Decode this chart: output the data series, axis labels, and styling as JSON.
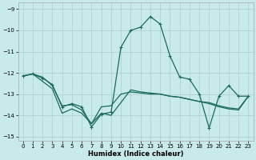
{
  "xlabel": "Humidex (Indice chaleur)",
  "background_color": "#c8eaea",
  "grid_color": "#aacccc",
  "line_color": "#1a6b5a",
  "xlim": [
    -0.5,
    23.5
  ],
  "ylim": [
    -15.2,
    -8.7
  ],
  "yticks": [
    -15,
    -14,
    -13,
    -12,
    -11,
    -10,
    -9
  ],
  "xticks": [
    0,
    1,
    2,
    3,
    4,
    5,
    6,
    7,
    8,
    9,
    10,
    11,
    12,
    13,
    14,
    15,
    16,
    17,
    18,
    19,
    20,
    21,
    22,
    23
  ],
  "series": [
    {
      "x": [
        0,
        1,
        2,
        3,
        4,
        5,
        6,
        7,
        8,
        9,
        10,
        11,
        12,
        13,
        14,
        15,
        16,
        17,
        18,
        19,
        20,
        21,
        22,
        23
      ],
      "y": [
        -12.15,
        -12.05,
        -12.4,
        -12.75,
        -13.9,
        -13.7,
        -13.9,
        -14.4,
        -13.9,
        -14.0,
        -13.4,
        -12.8,
        -12.9,
        -12.95,
        -13.0,
        -13.1,
        -13.15,
        -13.25,
        -13.35,
        -13.45,
        -13.6,
        -13.7,
        -13.75,
        -13.1
      ],
      "marker": false,
      "lw": 0.9
    },
    {
      "x": [
        0,
        1,
        2,
        3,
        4,
        5,
        6,
        7,
        8,
        9,
        10,
        11,
        12,
        13,
        14,
        15,
        16,
        17,
        18,
        19,
        20,
        21,
        22,
        23
      ],
      "y": [
        -12.15,
        -12.05,
        -12.2,
        -12.6,
        -13.55,
        -13.5,
        -13.75,
        -14.4,
        -13.6,
        -13.55,
        -13.0,
        -12.9,
        -12.95,
        -13.0,
        -13.0,
        -13.1,
        -13.15,
        -13.25,
        -13.35,
        -13.4,
        -13.55,
        -13.65,
        -13.7,
        -13.1
      ],
      "marker": false,
      "lw": 0.9
    },
    {
      "x": [
        0,
        1,
        2,
        3,
        4,
        5,
        6,
        7,
        8,
        9,
        10,
        11,
        12,
        13,
        14,
        15,
        16,
        17,
        18,
        19,
        20,
        21,
        22,
        23
      ],
      "y": [
        -12.15,
        -12.05,
        -12.25,
        -12.55,
        -13.6,
        -13.45,
        -13.6,
        -14.55,
        -13.95,
        -13.85,
        -10.8,
        -10.0,
        -9.85,
        -9.35,
        -9.7,
        -11.2,
        -12.2,
        -12.3,
        -13.0,
        -14.6,
        -13.1,
        -12.6,
        -13.1,
        -13.1
      ],
      "marker": true,
      "lw": 0.9
    }
  ]
}
